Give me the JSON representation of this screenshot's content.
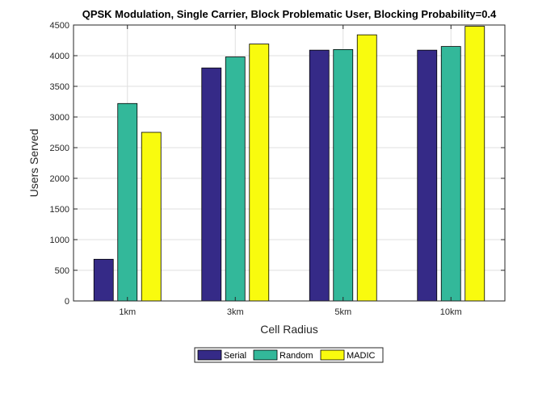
{
  "chart_data": {
    "type": "bar",
    "title": "QPSK Modulation, Single Carrier, Block Problematic User, Blocking Probability=0.4",
    "xlabel": "Cell Radius",
    "ylabel": "Users Served",
    "categories": [
      "1km",
      "3km",
      "5km",
      "10km"
    ],
    "ylim": [
      0,
      4500
    ],
    "yticks": [
      0,
      500,
      1000,
      1500,
      2000,
      2500,
      3000,
      3500,
      4000,
      4500
    ],
    "grid": true,
    "legend_position": "bottom-center",
    "series": [
      {
        "name": "Serial",
        "color": "#352a87",
        "values": [
          680,
          3800,
          4090,
          4090
        ]
      },
      {
        "name": "Random",
        "color": "#33b89a",
        "values": [
          3220,
          3980,
          4100,
          4150
        ]
      },
      {
        "name": "MADIC",
        "color": "#f9fb0e",
        "values": [
          2750,
          4190,
          4340,
          4480
        ]
      }
    ]
  }
}
